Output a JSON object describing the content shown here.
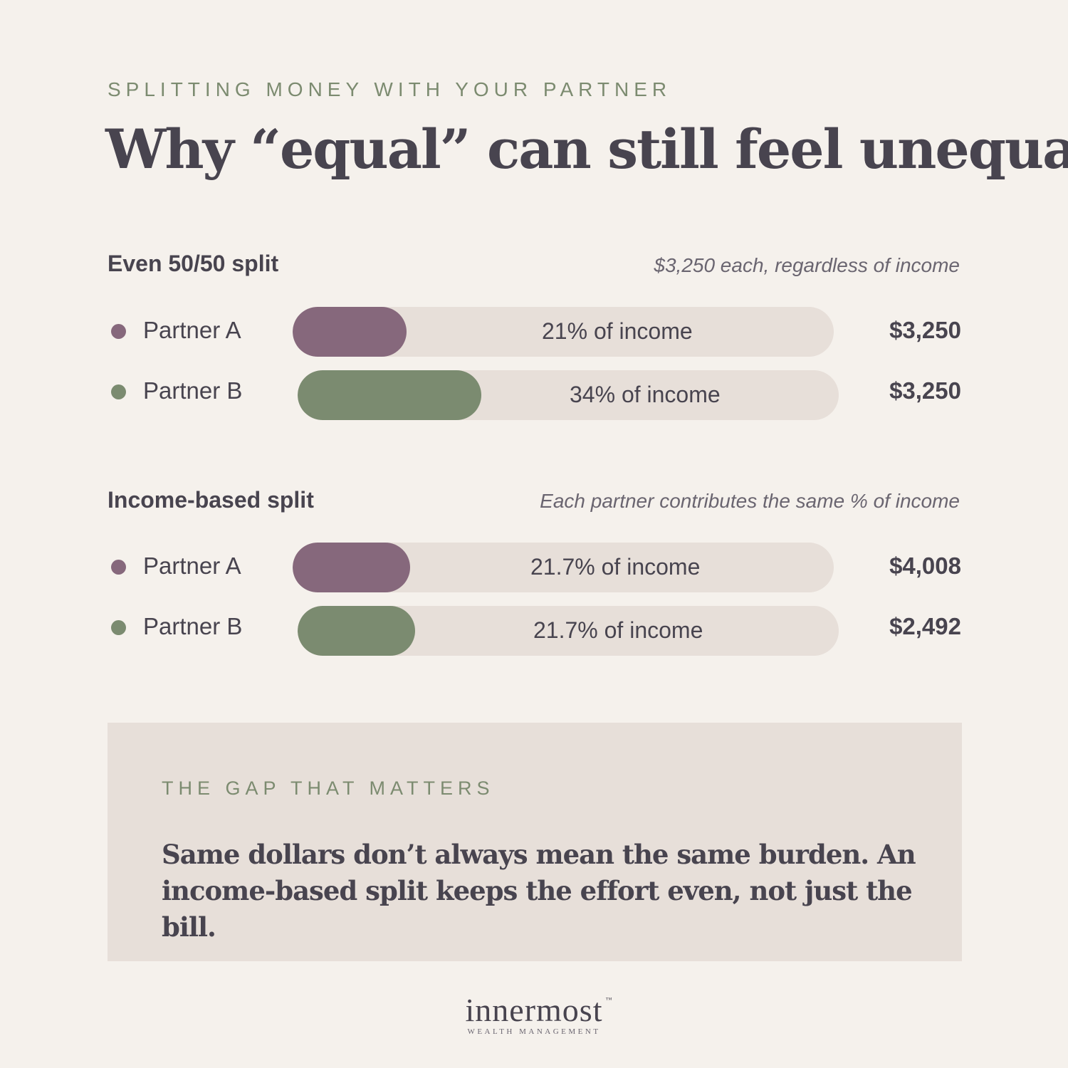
{
  "eyebrow": "SPLITTING MONEY WITH YOUR PARTNER",
  "title": "Why “equal” can still feel unequal",
  "colors": {
    "partner_a": "#86687c",
    "partner_b": "#7b8b70",
    "track": "#e7dfd9",
    "background": "#f5f1ec"
  },
  "chart_data": {
    "type": "bar",
    "sections": [
      {
        "title": "Even 50/50 split",
        "note": "$3,250 each, regardless of income",
        "rows": [
          {
            "partner": "Partner A",
            "share_percent": 21,
            "share_label": "21% of income",
            "amount": "$3,250"
          },
          {
            "partner": "Partner B",
            "share_percent": 34,
            "share_label": "34% of income",
            "amount": "$3,250"
          }
        ]
      },
      {
        "title": "Income-based split",
        "note": "Each partner contributes the same % of income",
        "rows": [
          {
            "partner": "Partner A",
            "share_percent": 21.7,
            "share_label": "21.7% of income",
            "amount": "$4,008"
          },
          {
            "partner": "Partner B",
            "share_percent": 21.7,
            "share_label": "21.7% of income",
            "amount": "$2,492"
          }
        ]
      }
    ]
  },
  "callout": {
    "eyebrow": "THE GAP THAT MATTERS",
    "body": "Same dollars don’t always mean the same burden. An income-based split keeps the effort even, not just the bill."
  },
  "logo": {
    "name": "innermost",
    "tm": "™",
    "tagline": "WEALTH MANAGEMENT"
  }
}
